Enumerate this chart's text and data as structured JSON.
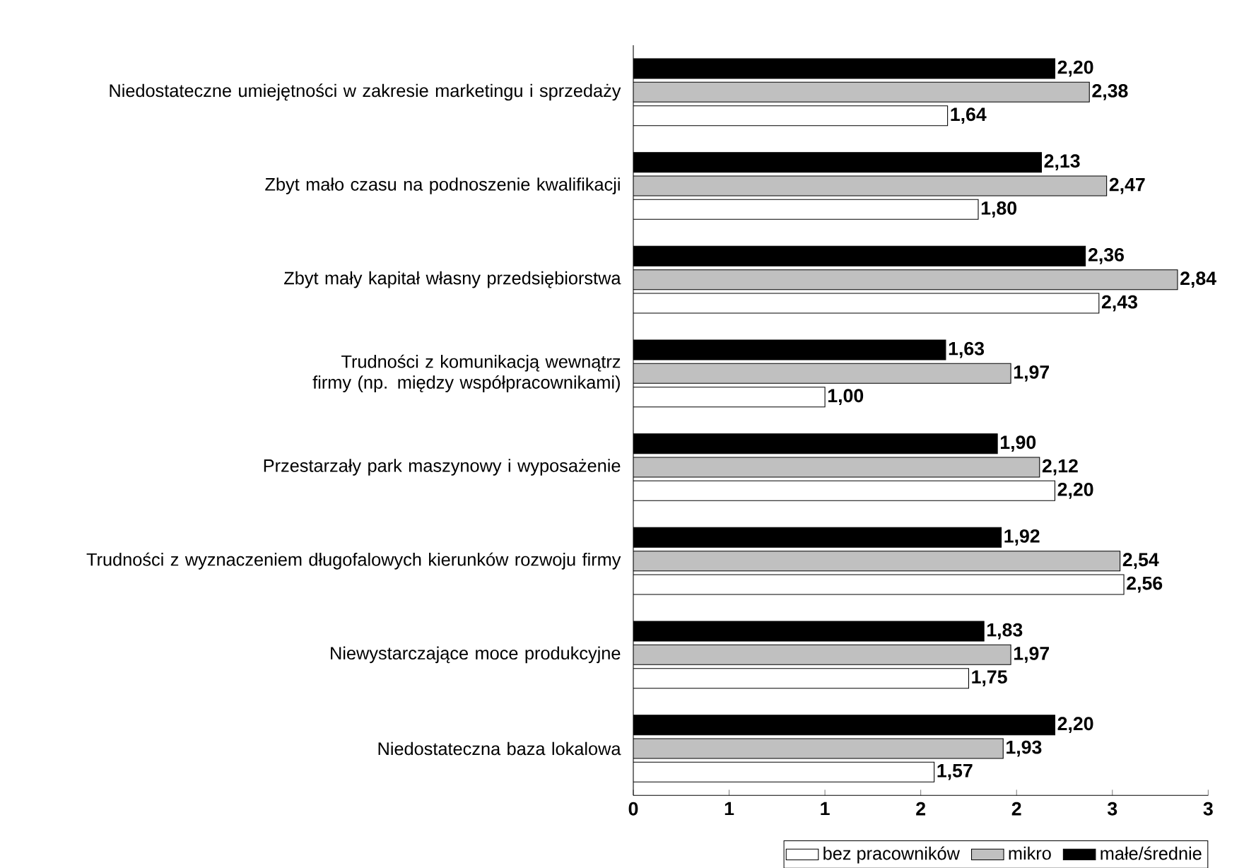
{
  "chart_data": {
    "type": "bar",
    "orientation": "horizontal",
    "categories": [
      "Niedostateczne umiejętności w zakresie marketingu i sprzedaży",
      "Zbyt mało czasu na podnoszenie kwalifikacji",
      "Zbyt mały kapitał własny przedsiębiorstwa",
      "Trudności z komunikacją wewnątrz firmy (np. między współpracownikami)",
      "Przestarzały park maszynowy i wyposażenie",
      "Trudności z wyznaczeniem długofalowych kierunków rozwoju firmy",
      "Niewystarczające moce produkcyjne",
      "Niedostateczna baza lokalowa"
    ],
    "series": [
      {
        "name": "bez pracowników",
        "color": "#ffffff",
        "values": [
          1.64,
          1.8,
          2.43,
          1.0,
          2.2,
          2.56,
          1.75,
          1.57
        ],
        "value_labels": [
          "1,64",
          "1,80",
          "2,43",
          "1,00",
          "2,20",
          "2,56",
          "1,75",
          "1,57"
        ]
      },
      {
        "name": "mikro",
        "color": "#c0c0c0",
        "values": [
          2.38,
          2.47,
          2.84,
          1.97,
          2.12,
          2.54,
          1.97,
          1.93
        ],
        "value_labels": [
          "2,38",
          "2,47",
          "2,84",
          "1,97",
          "2,12",
          "2,54",
          "1,97",
          "1,93"
        ]
      },
      {
        "name": "małe/średnie",
        "color": "#000000",
        "values": [
          2.2,
          2.13,
          2.36,
          1.63,
          1.9,
          1.92,
          1.83,
          2.2
        ],
        "value_labels": [
          "2,20",
          "2,13",
          "2,36",
          "1,63",
          "1,90",
          "1,92",
          "1,83",
          "2,20"
        ]
      }
    ],
    "xlim": [
      0,
      3
    ],
    "xticks": [
      0,
      {
        "value": 0.5,
        "label": "1"
      },
      1,
      {
        "value": 1.5,
        "label": "2"
      },
      2,
      {
        "value": 2.5,
        "label": "3"
      },
      3
    ],
    "grid": false,
    "legend": "bottom right"
  }
}
